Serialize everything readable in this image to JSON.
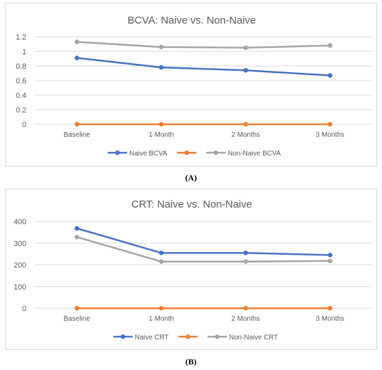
{
  "chart_data": [
    {
      "type": "line",
      "title": "BCVA: Naive vs. Non-Naive",
      "categories": [
        "Baseline",
        "1 Month",
        "2 Months",
        "3 Months"
      ],
      "yticks": [
        "0",
        "0.2",
        "0.4",
        "0.6",
        "0.8",
        "1",
        "1.2"
      ],
      "ylim": [
        0,
        1.2
      ],
      "grid": true,
      "legend_position": "bottom",
      "series": [
        {
          "name": "Naive BCVA",
          "values": [
            0.91,
            0.78,
            0.74,
            0.67
          ],
          "color": "#4472c4"
        },
        {
          "name": "",
          "values": [
            0,
            0,
            0,
            0
          ],
          "color": "#ed7d31"
        },
        {
          "name": "Non-Naive BCVA",
          "values": [
            1.13,
            1.06,
            1.05,
            1.08
          ],
          "color": "#a5a5a5"
        }
      ]
    },
    {
      "type": "line",
      "title": "CRT: Naive vs. Non-Naive",
      "categories": [
        "Baseline",
        "1 Month",
        "2 Months",
        "3 Months"
      ],
      "yticks": [
        "0",
        "100",
        "200",
        "300",
        "400"
      ],
      "ylim": [
        0,
        400
      ],
      "grid": true,
      "legend_position": "bottom",
      "series": [
        {
          "name": "Naive CRT",
          "values": [
            368,
            255,
            255,
            245
          ],
          "color": "#4472c4"
        },
        {
          "name": "",
          "values": [
            0,
            0,
            0,
            0
          ],
          "color": "#ed7d31"
        },
        {
          "name": "Non-Naive CRT",
          "values": [
            328,
            215,
            215,
            218
          ],
          "color": "#a5a5a5"
        }
      ]
    }
  ],
  "captions": {
    "a": "(A)",
    "b": "(B)"
  }
}
